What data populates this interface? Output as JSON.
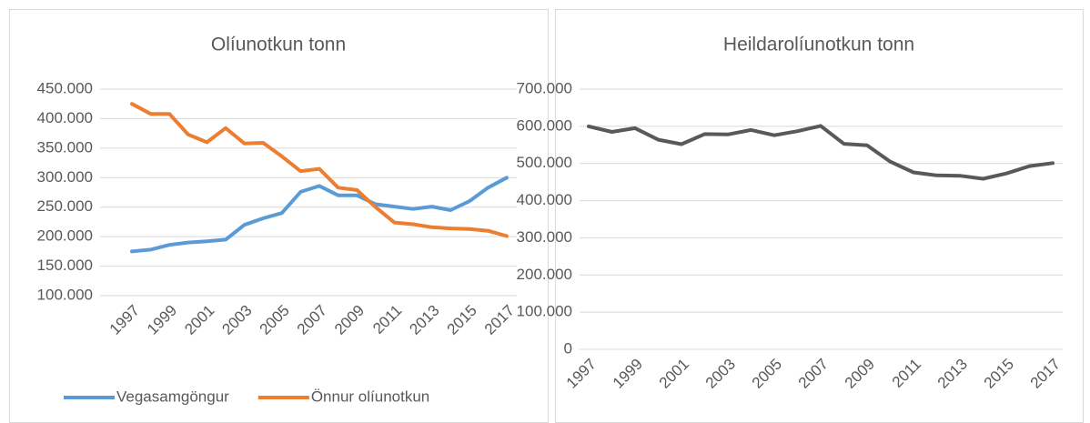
{
  "chart_data": [
    {
      "type": "line",
      "title": "Olíunotkun tonn",
      "x": [
        1997,
        1998,
        1999,
        2000,
        2001,
        2002,
        2003,
        2004,
        2005,
        2006,
        2007,
        2008,
        2009,
        2010,
        2011,
        2012,
        2013,
        2014,
        2015,
        2016,
        2017
      ],
      "xlim": [
        1997,
        2017
      ],
      "xticks": [
        1997,
        1999,
        2001,
        2003,
        2005,
        2007,
        2009,
        2011,
        2013,
        2015,
        2017
      ],
      "ylim": [
        100000,
        450000
      ],
      "yticks": [
        {
          "value": 100000,
          "label": "100.000"
        },
        {
          "value": 150000,
          "label": "150.000"
        },
        {
          "value": 200000,
          "label": "200.000"
        },
        {
          "value": 250000,
          "label": "250.000"
        },
        {
          "value": 300000,
          "label": "300.000"
        },
        {
          "value": 350000,
          "label": "350.000"
        },
        {
          "value": 400000,
          "label": "400.000"
        },
        {
          "value": 450000,
          "label": "450.000"
        }
      ],
      "grid": true,
      "legend": "bottom",
      "series": [
        {
          "name": "Vegasamgöngur",
          "color": "#5b9bd5",
          "values": [
            175000,
            178000,
            186000,
            190000,
            192000,
            195000,
            220000,
            231000,
            240000,
            276000,
            286000,
            270000,
            270000,
            255000,
            251000,
            247000,
            251000,
            245000,
            260000,
            283000,
            300000
          ]
        },
        {
          "name": "Önnur olíunotkun",
          "color": "#ed7d31",
          "values": [
            425000,
            408000,
            408000,
            373000,
            360000,
            384000,
            358000,
            359000,
            336000,
            311000,
            315000,
            283000,
            279000,
            250000,
            224000,
            221000,
            216000,
            214000,
            213000,
            210000,
            201000
          ]
        }
      ]
    },
    {
      "type": "line",
      "title": "Heildarolíunotkun tonn",
      "x": [
        1997,
        1998,
        1999,
        2000,
        2001,
        2002,
        2003,
        2004,
        2005,
        2006,
        2007,
        2008,
        2009,
        2010,
        2011,
        2012,
        2013,
        2014,
        2015,
        2016,
        2017
      ],
      "xlim": [
        1997,
        2017
      ],
      "xticks": [
        1997,
        1999,
        2001,
        2003,
        2005,
        2007,
        2009,
        2011,
        2013,
        2015,
        2017
      ],
      "ylim": [
        0,
        700000
      ],
      "yticks": [
        0,
        {
          "value": 100000,
          "label": "100.000"
        },
        {
          "value": 200000,
          "label": "200.000"
        },
        {
          "value": 300000,
          "label": "300.000"
        },
        {
          "value": 400000,
          "label": "400.000"
        },
        {
          "value": 500000,
          "label": "500.000"
        },
        {
          "value": 600000,
          "label": "600.000"
        },
        {
          "value": 700000,
          "label": "700.000"
        }
      ],
      "grid": true,
      "series": [
        {
          "color": "#595959",
          "values": [
            600000,
            585000,
            595000,
            564000,
            552000,
            579000,
            578000,
            590000,
            576000,
            587000,
            601000,
            553000,
            549000,
            505000,
            476000,
            468000,
            467000,
            459000,
            473000,
            493000,
            501000
          ]
        }
      ]
    }
  ]
}
